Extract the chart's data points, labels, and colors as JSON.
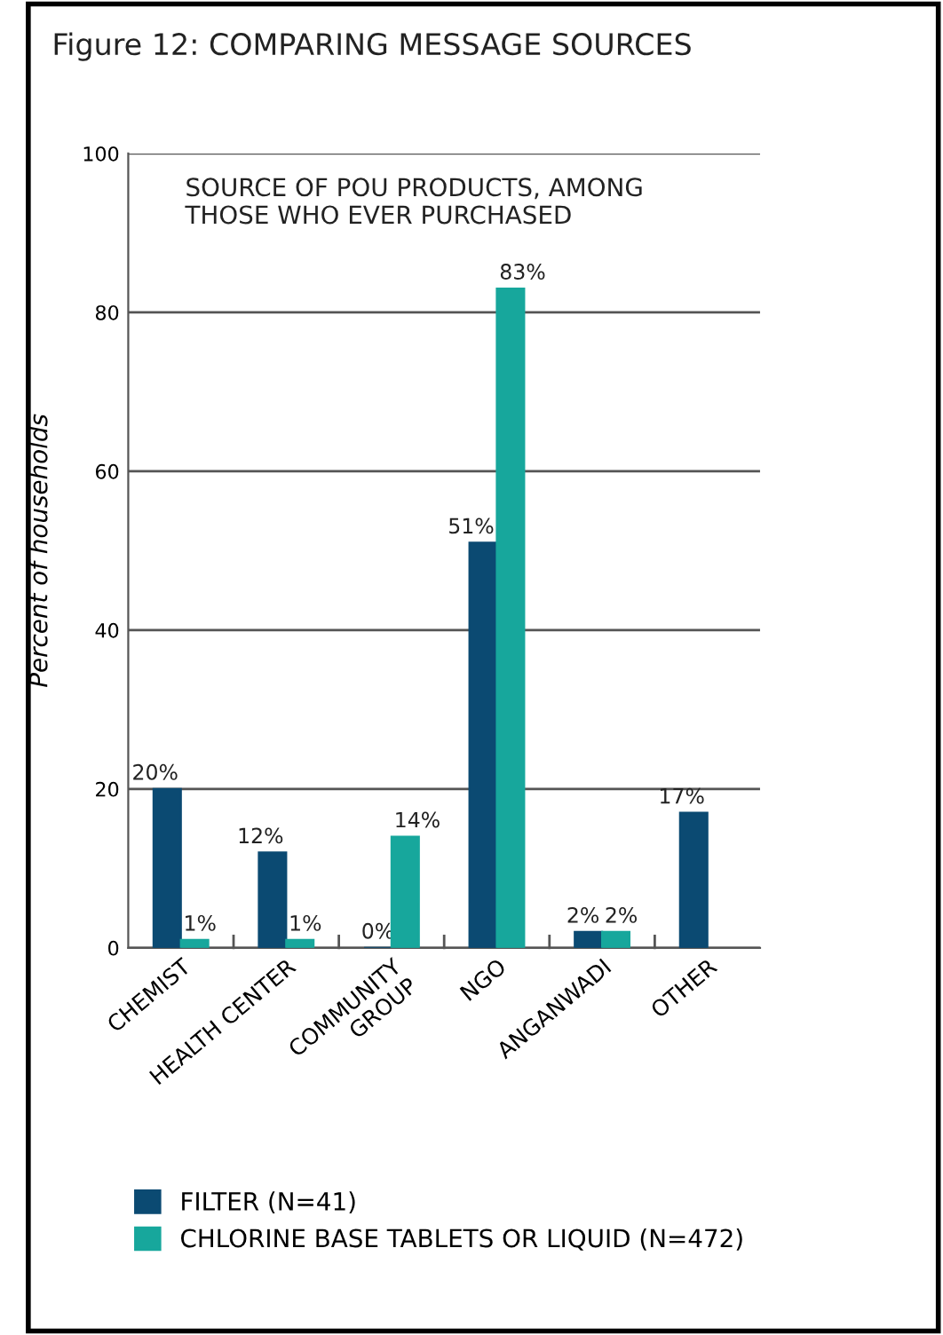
{
  "chart_data": {
    "type": "bar",
    "title": "Figure 12: COMPARING MESSAGE SOURCES",
    "subtitle": "SOURCE OF POU PRODUCTS, AMONG\nTHOSE WHO EVER PURCHASED",
    "ylabel": "Percent of households",
    "categories": [
      "CHEMIST",
      "HEALTH CENTER",
      "COMMUNITY\nGROUP",
      "NGO",
      "ANGANWADI",
      "OTHER"
    ],
    "series": [
      {
        "name": "FILTER (N=41)",
        "color": "#0b4a72",
        "values": [
          20,
          12,
          0,
          51,
          2,
          17
        ],
        "value_labels": [
          "20%",
          "12%",
          "0%",
          "51%",
          "2%",
          "17%"
        ]
      },
      {
        "name": "CHLORINE BASE TABLETS OR LIQUID (N=472)",
        "color": "#17a79c",
        "values": [
          1,
          1,
          14,
          83,
          2,
          null
        ],
        "value_labels": [
          "1%",
          "1%",
          "14%",
          "83%",
          "2%",
          null
        ]
      }
    ],
    "ylim": [
      0,
      100
    ],
    "yticks": [
      0,
      20,
      40,
      60,
      80,
      100
    ],
    "grid": "y",
    "legend": "bottom"
  }
}
